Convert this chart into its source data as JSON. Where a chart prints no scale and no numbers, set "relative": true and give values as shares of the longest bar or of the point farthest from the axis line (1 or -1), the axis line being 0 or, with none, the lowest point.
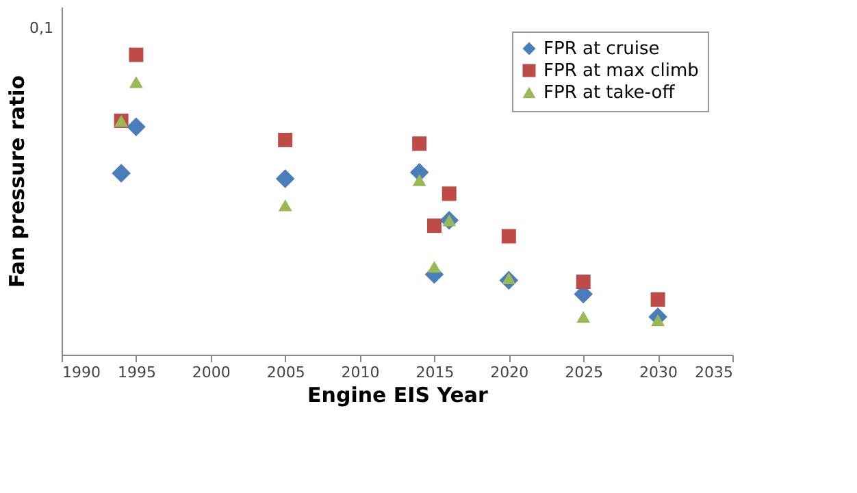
{
  "chart_data": {
    "type": "scatter",
    "relative": true,
    "xlabel": "Engine EIS Year",
    "ylabel": "Fan pressure ratio",
    "x": [
      1994,
      1995,
      2005,
      2014,
      2015,
      2016,
      2020,
      2025,
      2030
    ],
    "xlim": [
      1990,
      2035
    ],
    "xticks": [
      1990,
      1995,
      2000,
      2005,
      2010,
      2015,
      2020,
      2025,
      2030,
      2035
    ],
    "series": [
      {
        "name": "FPR at cruise",
        "color": "#4a7ebb",
        "marker": "diamond",
        "values": [
          0.605,
          0.76,
          0.587,
          0.608,
          0.268,
          0.448,
          0.248,
          0.202,
          0.126
        ]
      },
      {
        "name": "FPR at max climb",
        "color": "#be4b48",
        "marker": "square",
        "values": [
          0.78,
          1.0,
          0.716,
          0.704,
          0.43,
          0.537,
          0.395,
          0.243,
          0.184
        ]
      },
      {
        "name": "FPR at take-off",
        "color": "#98b954",
        "marker": "triangle",
        "values": [
          0.78,
          0.909,
          0.498,
          0.582,
          0.293,
          0.448,
          0.255,
          0.126,
          0.115
        ]
      }
    ],
    "annotations": [
      "0,1"
    ],
    "legend": "top right",
    "grid": false
  }
}
